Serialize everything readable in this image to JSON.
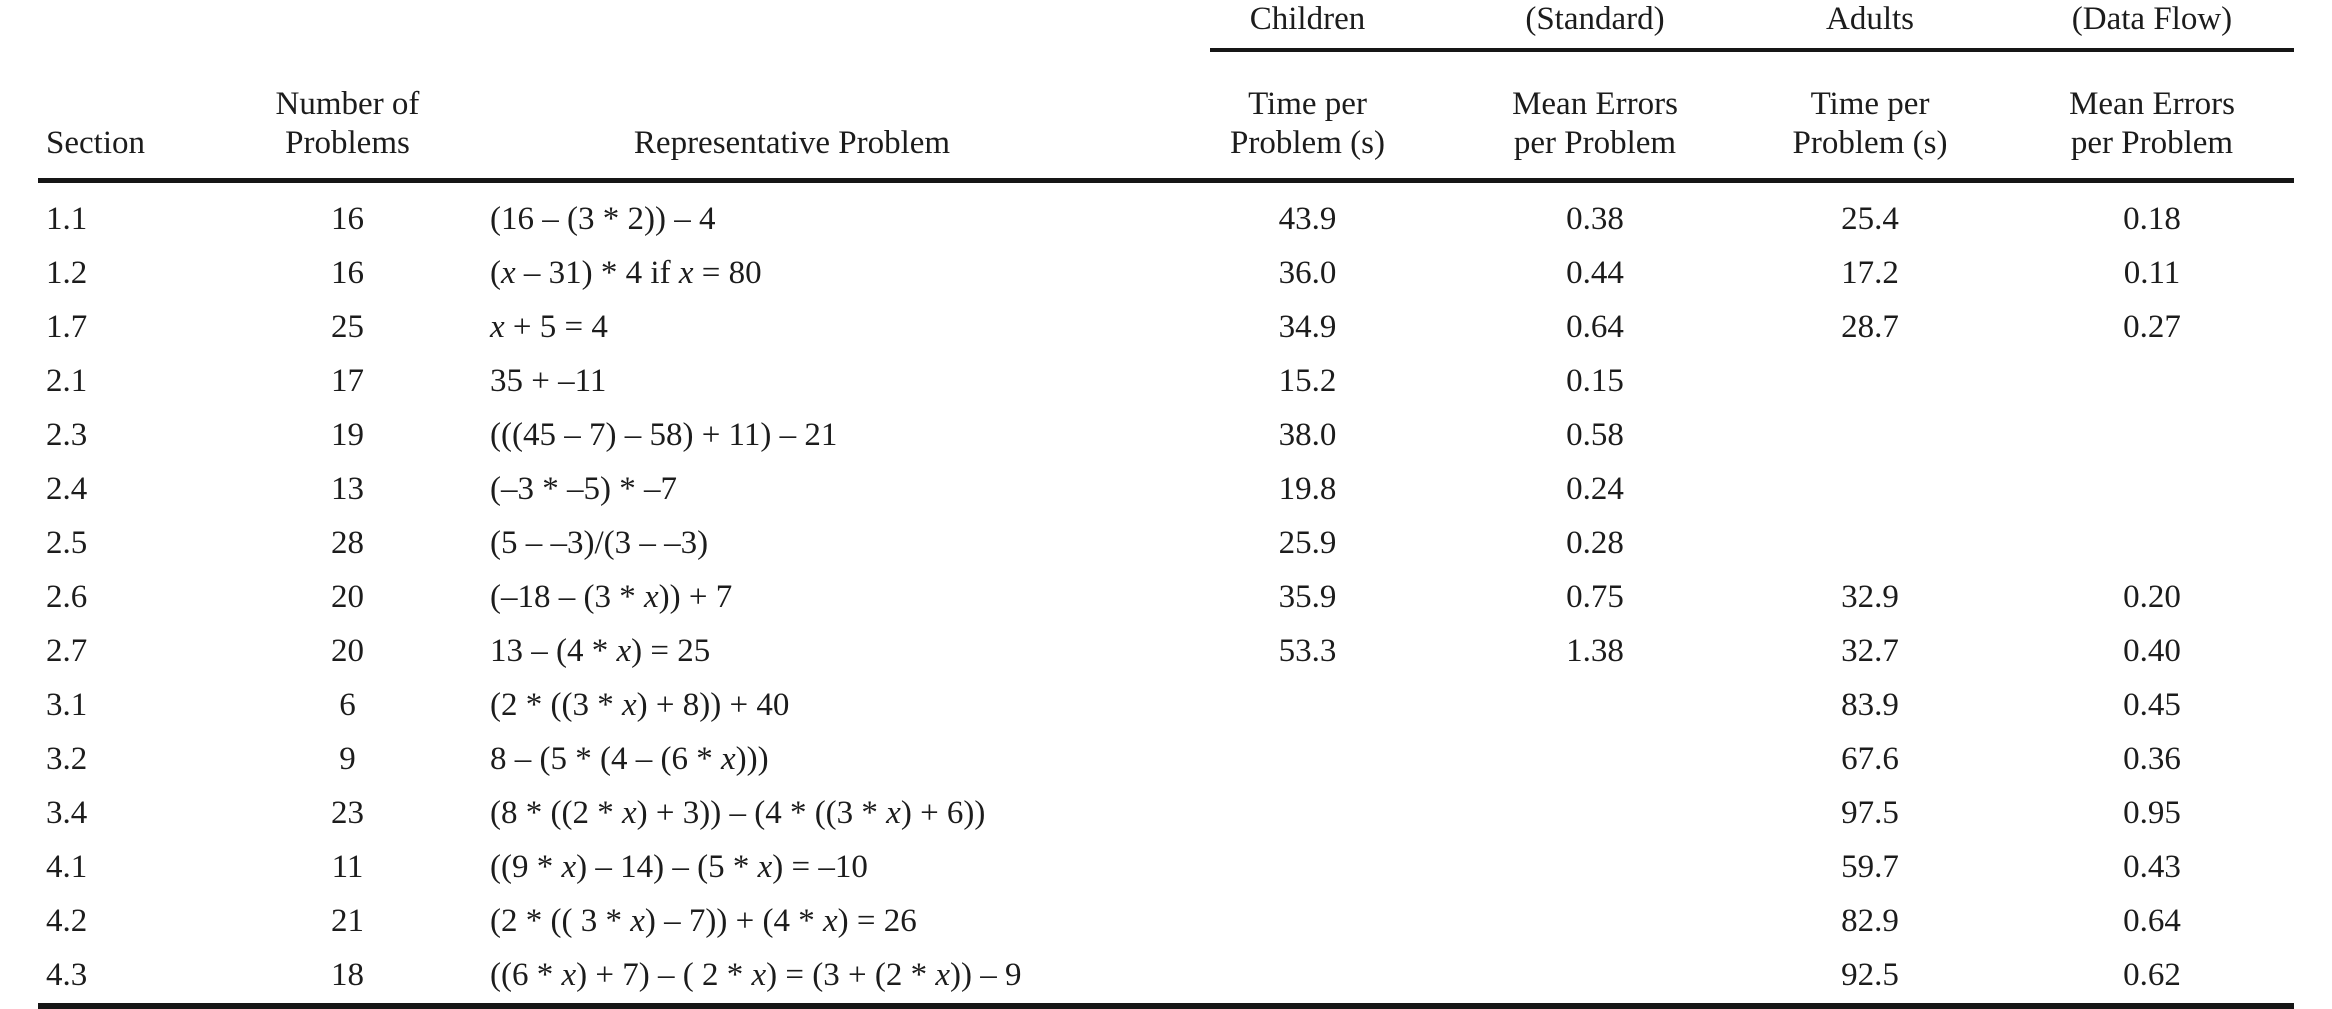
{
  "page": {
    "background_color": "#ffffff",
    "text_color": "#1c1c1c",
    "rule_color": "#161616"
  },
  "table": {
    "group_header": {
      "children": "Children",
      "standard": "(Standard)",
      "adults": "Adults",
      "data_flow": "(Data Flow)"
    },
    "column_headers": {
      "section": "Section",
      "num_problems": {
        "line1": "Number of",
        "line2": "Problems"
      },
      "representative_problem": "Representative Problem",
      "children_time": {
        "line1": "Time per",
        "line2": "Problem (s)"
      },
      "children_errors": {
        "line1": "Mean Errors",
        "line2": "per Problem"
      },
      "adults_time": {
        "line1": "Time per",
        "line2": "Problem (s)"
      },
      "adults_errors": {
        "line1": "Mean Errors",
        "line2": "per Problem"
      }
    },
    "rows": [
      {
        "section": "1.1",
        "num_problems": "16",
        "problem": "(16 – (3 * 2)) – 4",
        "children_time": "43.9",
        "children_errors": "0.38",
        "adults_time": "25.4",
        "adults_errors": "0.18"
      },
      {
        "section": "1.2",
        "num_problems": "16",
        "problem": "(x – 31) * 4 if x = 80",
        "children_time": "36.0",
        "children_errors": "0.44",
        "adults_time": "17.2",
        "adults_errors": "0.11"
      },
      {
        "section": "1.7",
        "num_problems": "25",
        "problem": "x + 5 = 4",
        "children_time": "34.9",
        "children_errors": "0.64",
        "adults_time": "28.7",
        "adults_errors": "0.27"
      },
      {
        "section": "2.1",
        "num_problems": "17",
        "problem": "35 + –11",
        "children_time": "15.2",
        "children_errors": "0.15",
        "adults_time": "",
        "adults_errors": ""
      },
      {
        "section": "2.3",
        "num_problems": "19",
        "problem": "(((45 – 7) – 58) + 11) – 21",
        "children_time": "38.0",
        "children_errors": "0.58",
        "adults_time": "",
        "adults_errors": ""
      },
      {
        "section": "2.4",
        "num_problems": "13",
        "problem": "(–3 * –5) * –7",
        "children_time": "19.8",
        "children_errors": "0.24",
        "adults_time": "",
        "adults_errors": ""
      },
      {
        "section": "2.5",
        "num_problems": "28",
        "problem": "(5 – –3)/(3 – –3)",
        "children_time": "25.9",
        "children_errors": "0.28",
        "adults_time": "",
        "adults_errors": ""
      },
      {
        "section": "2.6",
        "num_problems": "20",
        "problem": "(–18 – (3 * x)) + 7",
        "children_time": "35.9",
        "children_errors": "0.75",
        "adults_time": "32.9",
        "adults_errors": "0.20"
      },
      {
        "section": "2.7",
        "num_problems": "20",
        "problem": "13 – (4 * x) = 25",
        "children_time": "53.3",
        "children_errors": "1.38",
        "adults_time": "32.7",
        "adults_errors": "0.40"
      },
      {
        "section": "3.1",
        "num_problems": "6",
        "problem": "(2 * ((3 * x) + 8)) + 40",
        "children_time": "",
        "children_errors": "",
        "adults_time": "83.9",
        "adults_errors": "0.45"
      },
      {
        "section": "3.2",
        "num_problems": "9",
        "problem": "8 – (5 * (4 – (6 * x)))",
        "children_time": "",
        "children_errors": "",
        "adults_time": "67.6",
        "adults_errors": "0.36"
      },
      {
        "section": "3.4",
        "num_problems": "23",
        "problem": "(8 * ((2 * x) + 3)) – (4 * ((3 * x) + 6))",
        "children_time": "",
        "children_errors": "",
        "adults_time": "97.5",
        "adults_errors": "0.95"
      },
      {
        "section": "4.1",
        "num_problems": "11",
        "problem": "((9 * x) – 14) – (5 * x) = –10",
        "children_time": "",
        "children_errors": "",
        "adults_time": "59.7",
        "adults_errors": "0.43"
      },
      {
        "section": "4.2",
        "num_problems": "21",
        "problem": "(2 * (( 3 * x) – 7)) + (4 * x) = 26",
        "children_time": "",
        "children_errors": "",
        "adults_time": "82.9",
        "adults_errors": "0.64"
      },
      {
        "section": "4.3",
        "num_problems": "18",
        "problem": "((6 * x) + 7) – ( 2 * x) = (3 + (2 * x)) – 9",
        "children_time": "",
        "children_errors": "",
        "adults_time": "92.5",
        "adults_errors": "0.62"
      }
    ]
  },
  "chart_data": {
    "type": "table",
    "columns": [
      "Section",
      "Number of Problems",
      "Representative Problem",
      "Children (Standard) Time per Problem (s)",
      "Children (Standard) Mean Errors per Problem",
      "Adults (Data Flow) Time per Problem (s)",
      "Adults (Data Flow) Mean Errors per Problem"
    ],
    "rows": [
      [
        "1.1",
        16,
        "(16 – (3 * 2)) – 4",
        43.9,
        0.38,
        25.4,
        0.18
      ],
      [
        "1.2",
        16,
        "(x – 31) * 4 if x = 80",
        36.0,
        0.44,
        17.2,
        0.11
      ],
      [
        "1.7",
        25,
        "x + 5 = 4",
        34.9,
        0.64,
        28.7,
        0.27
      ],
      [
        "2.1",
        17,
        "35 + –11",
        15.2,
        0.15,
        null,
        null
      ],
      [
        "2.3",
        19,
        "(((45 – 7) – 58) + 11) – 21",
        38.0,
        0.58,
        null,
        null
      ],
      [
        "2.4",
        13,
        "(–3 * –5) * –7",
        19.8,
        0.24,
        null,
        null
      ],
      [
        "2.5",
        28,
        "(5 – –3)/(3 – –3)",
        25.9,
        0.28,
        null,
        null
      ],
      [
        "2.6",
        20,
        "(–18 – (3 * x)) + 7",
        35.9,
        0.75,
        32.9,
        0.2
      ],
      [
        "2.7",
        20,
        "13 – (4 * x) = 25",
        53.3,
        1.38,
        32.7,
        0.4
      ],
      [
        "3.1",
        6,
        "(2 * ((3 * x) + 8)) + 40",
        null,
        null,
        83.9,
        0.45
      ],
      [
        "3.2",
        9,
        "8 – (5 * (4 – (6 * x)))",
        null,
        null,
        67.6,
        0.36
      ],
      [
        "3.4",
        23,
        "(8 * ((2 * x) + 3)) – (4 * ((3 * x) + 6))",
        null,
        null,
        97.5,
        0.95
      ],
      [
        "4.1",
        11,
        "((9 * x) – 14) – (5 * x) = –10",
        null,
        null,
        59.7,
        0.43
      ],
      [
        "4.2",
        21,
        "(2 * (( 3 * x) – 7)) + (4 * x) = 26",
        null,
        null,
        82.9,
        0.64
      ],
      [
        "4.3",
        18,
        "((6 * x) + 7) – ( 2 * x) = (3 + (2 * x)) – 9",
        null,
        null,
        92.5,
        0.62
      ]
    ]
  }
}
